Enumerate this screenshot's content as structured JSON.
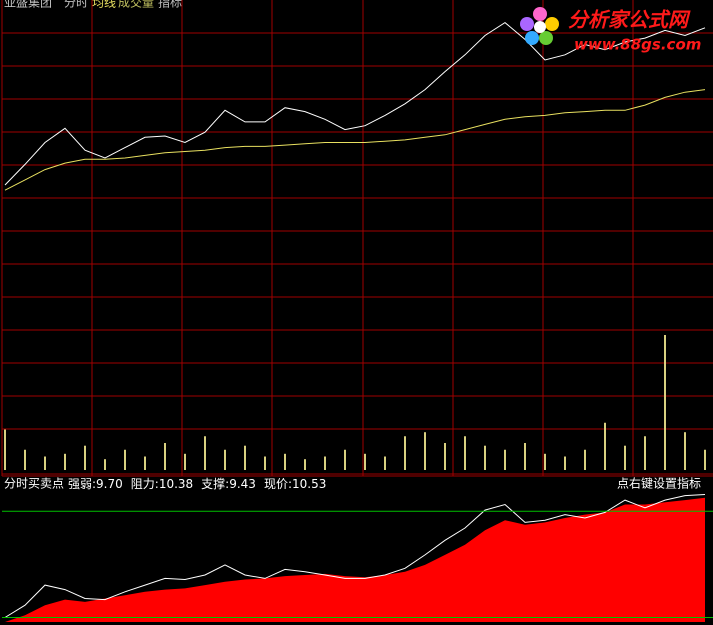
{
  "header": {
    "stock": "亚盛集团",
    "tabs": [
      "分时",
      "均线",
      "成交量",
      "指标"
    ]
  },
  "watermark": {
    "title": "分析家公式网",
    "url": "www.88gs.com"
  },
  "chart_data": [
    {
      "type": "line",
      "ylim": [
        7.4,
        11.0
      ],
      "series": [
        {
          "color": "#ffffff",
          "values": [
            9.58,
            9.74,
            9.91,
            10.02,
            9.85,
            9.79,
            9.87,
            9.95,
            9.96,
            9.91,
            9.99,
            10.16,
            10.07,
            10.07,
            10.18,
            10.15,
            10.09,
            10.01,
            10.04,
            10.12,
            10.21,
            10.32,
            10.46,
            10.59,
            10.74,
            10.84,
            10.71,
            10.55,
            10.59,
            10.67,
            10.63,
            10.69,
            10.72,
            10.78,
            10.74,
            10.8
          ]
        },
        {
          "color": "#e8e060",
          "values": [
            9.54,
            9.62,
            9.7,
            9.75,
            9.78,
            9.78,
            9.79,
            9.81,
            9.83,
            9.84,
            9.85,
            9.87,
            9.88,
            9.88,
            9.89,
            9.9,
            9.91,
            9.91,
            9.91,
            9.92,
            9.93,
            9.95,
            9.97,
            10.01,
            10.05,
            10.09,
            10.11,
            10.12,
            10.14,
            10.15,
            10.16,
            10.16,
            10.2,
            10.26,
            10.3,
            10.32
          ]
        }
      ]
    },
    {
      "type": "bar",
      "ylim": [
        0,
        100
      ],
      "color": "#d8d080",
      "values": [
        30,
        15,
        10,
        12,
        18,
        8,
        15,
        10,
        20,
        12,
        25,
        15,
        18,
        10,
        12,
        8,
        10,
        15,
        12,
        10,
        25,
        28,
        20,
        25,
        18,
        15,
        20,
        12,
        10,
        15,
        35,
        18,
        25,
        100,
        28,
        15
      ]
    },
    {
      "type": "area",
      "title": "分时买卖点",
      "ylim": [
        9.39,
        10.57
      ],
      "legend": [
        {
          "name": "强弱:",
          "value": 9.7,
          "value_label": "9.70"
        },
        {
          "name": "阻力:",
          "value": 10.38,
          "value_label": "10.38",
          "color": "#00c000"
        },
        {
          "name": "支撑:",
          "value": 9.43,
          "value_label": "9.43",
          "color": "#00c000"
        },
        {
          "name": "现价:",
          "value": 10.53,
          "value_label": "10.53"
        }
      ],
      "hint": "点右键设置指标",
      "series": [
        {
          "color": "#ff0000",
          "fill": true,
          "values": [
            9.39,
            9.45,
            9.54,
            9.59,
            9.57,
            9.6,
            9.63,
            9.66,
            9.68,
            9.69,
            9.72,
            9.75,
            9.77,
            9.78,
            9.8,
            9.81,
            9.82,
            9.8,
            9.79,
            9.81,
            9.84,
            9.9,
            9.99,
            10.08,
            10.21,
            10.3,
            10.26,
            10.28,
            10.32,
            10.35,
            10.37,
            10.44,
            10.44,
            10.46,
            10.48,
            10.5
          ]
        },
        {
          "color": "#ffffff",
          "values": [
            9.43,
            9.54,
            9.72,
            9.68,
            9.6,
            9.59,
            9.66,
            9.72,
            9.78,
            9.77,
            9.81,
            9.9,
            9.81,
            9.78,
            9.86,
            9.84,
            9.81,
            9.78,
            9.78,
            9.81,
            9.87,
            9.99,
            10.12,
            10.23,
            10.39,
            10.44,
            10.28,
            10.3,
            10.35,
            10.32,
            10.37,
            10.48,
            10.41,
            10.48,
            10.52,
            10.53
          ]
        }
      ]
    }
  ]
}
